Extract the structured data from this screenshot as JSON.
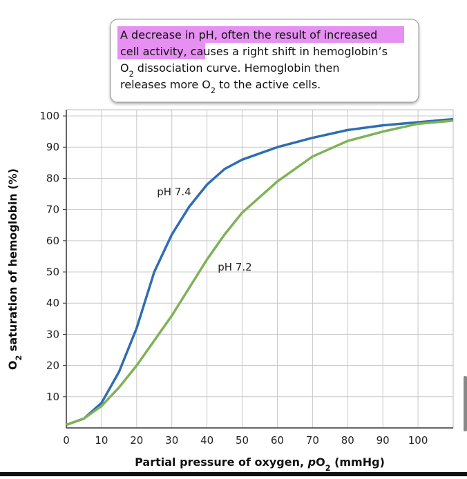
{
  "chart_data": {
    "type": "line",
    "annotation": [
      [
        {
          "text": "A decrease in pH, often the result of increased"
        }
      ],
      [
        {
          "text": "cell activity, causes a right shift in hemoglobin’s"
        }
      ],
      [
        {
          "text": "O"
        },
        {
          "text": "2",
          "sub": true
        },
        {
          "text": " dissociation curve. Hemoglobin then"
        }
      ],
      [
        {
          "text": "releases more O"
        },
        {
          "text": "2",
          "sub": true
        },
        {
          "text": " to the active cells."
        }
      ]
    ],
    "x_label": [
      {
        "text": "Partial pressure of oxygen, "
      },
      {
        "text": "p",
        "italic": true
      },
      {
        "text": "O"
      },
      {
        "text": "2",
        "sub": true
      },
      {
        "text": " (mmHg)"
      }
    ],
    "y_label": [
      {
        "text": "O"
      },
      {
        "text": "2",
        "sub": true
      },
      {
        "text": " saturation of hemoglobin (%)"
      }
    ],
    "x": [
      0,
      5,
      10,
      15,
      20,
      25,
      30,
      35,
      40,
      45,
      50,
      60,
      70,
      80,
      90,
      100,
      110
    ],
    "series": [
      {
        "name": "pH 7.4",
        "color": "#2f6db3",
        "values": [
          1,
          3,
          8,
          18,
          32,
          50,
          62,
          71,
          78,
          83,
          86,
          90,
          93,
          95.5,
          97,
          98,
          99
        ]
      },
      {
        "name": "pH 7.2",
        "color": "#7eb356",
        "values": [
          1,
          3,
          7,
          13,
          20,
          28,
          36,
          45,
          54,
          62,
          69,
          79,
          87,
          92,
          95,
          97.5,
          98.5
        ]
      }
    ],
    "xlim": [
      0,
      110
    ],
    "ylim": [
      0,
      102
    ],
    "xticks": [
      0,
      10,
      20,
      30,
      40,
      50,
      60,
      70,
      80,
      90,
      100
    ],
    "yticks": [
      10,
      20,
      30,
      40,
      50,
      60,
      70,
      80,
      90,
      100
    ],
    "grid": true
  }
}
